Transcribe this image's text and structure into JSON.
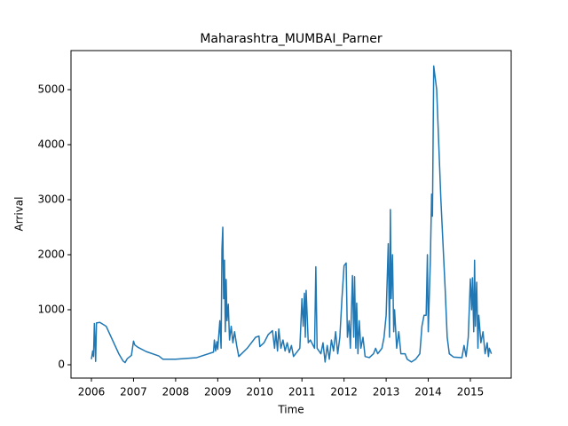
{
  "chart_data": {
    "type": "line",
    "title": "Maharashtra_MUMBAI_Parner",
    "xlabel": "Time",
    "ylabel": "Arrival",
    "color": "#1f77b4",
    "x": [
      2006.0,
      2006.03,
      2006.05,
      2006.07,
      2006.09,
      2006.1,
      2006.12,
      2006.2,
      2006.35,
      2006.5,
      2006.65,
      2006.75,
      2006.8,
      2006.85,
      2006.95,
      2007.0,
      2007.03,
      2007.1,
      2007.3,
      2007.6,
      2007.7,
      2008.0,
      2008.5,
      2008.9,
      2008.92,
      2008.95,
      2008.98,
      2009.0,
      2009.05,
      2009.08,
      2009.1,
      2009.12,
      2009.14,
      2009.16,
      2009.18,
      2009.2,
      2009.22,
      2009.25,
      2009.28,
      2009.32,
      2009.36,
      2009.4,
      2009.45,
      2009.5,
      2009.7,
      2009.9,
      2009.98,
      2010.0,
      2010.1,
      2010.2,
      2010.3,
      2010.35,
      2010.38,
      2010.42,
      2010.45,
      2010.5,
      2010.55,
      2010.6,
      2010.65,
      2010.7,
      2010.75,
      2010.8,
      2010.85,
      2010.95,
      2011.0,
      2011.03,
      2011.06,
      2011.08,
      2011.1,
      2011.15,
      2011.2,
      2011.3,
      2011.33,
      2011.36,
      2011.45,
      2011.5,
      2011.55,
      2011.6,
      2011.65,
      2011.7,
      2011.75,
      2011.8,
      2011.85,
      2011.9,
      2011.95,
      2012.0,
      2012.05,
      2012.08,
      2012.12,
      2012.15,
      2012.2,
      2012.23,
      2012.25,
      2012.28,
      2012.3,
      2012.33,
      2012.36,
      2012.4,
      2012.45,
      2012.5,
      2012.6,
      2012.7,
      2012.75,
      2012.8,
      2012.85,
      2012.9,
      2012.95,
      2013.0,
      2013.05,
      2013.08,
      2013.1,
      2013.12,
      2013.15,
      2013.18,
      2013.2,
      2013.25,
      2013.3,
      2013.35,
      2013.45,
      2013.5,
      2013.6,
      2013.7,
      2013.8,
      2013.85,
      2013.9,
      2013.95,
      2013.98,
      2014.0,
      2014.05,
      2014.08,
      2014.1,
      2014.13,
      2014.2,
      2014.3,
      2014.4,
      2014.45,
      2014.5,
      2014.6,
      2014.8,
      2014.85,
      2014.9,
      2014.95,
      2015.0,
      2015.03,
      2015.05,
      2015.08,
      2015.1,
      2015.12,
      2015.15,
      2015.18,
      2015.2,
      2015.25,
      2015.3,
      2015.35,
      2015.4,
      2015.43,
      2015.45,
      2015.5
    ],
    "values": [
      100,
      250,
      150,
      750,
      300,
      60,
      760,
      770,
      700,
      450,
      200,
      70,
      40,
      110,
      170,
      430,
      360,
      320,
      240,
      160,
      100,
      100,
      130,
      230,
      450,
      250,
      420,
      280,
      800,
      300,
      2100,
      2500,
      1200,
      1900,
      600,
      1550,
      800,
      1100,
      450,
      700,
      400,
      600,
      350,
      150,
      300,
      500,
      520,
      330,
      400,
      550,
      620,
      300,
      600,
      250,
      650,
      300,
      450,
      250,
      400,
      220,
      350,
      150,
      200,
      300,
      1200,
      700,
      1300,
      500,
      1350,
      400,
      450,
      300,
      1780,
      300,
      200,
      400,
      50,
      350,
      100,
      450,
      250,
      600,
      200,
      500,
      1200,
      1800,
      1850,
      500,
      800,
      300,
      1620,
      500,
      1600,
      300,
      1120,
      200,
      800,
      300,
      500,
      150,
      130,
      200,
      300,
      200,
      250,
      300,
      500,
      900,
      2200,
      500,
      2820,
      1200,
      2000,
      600,
      1000,
      300,
      600,
      200,
      200,
      100,
      50,
      100,
      200,
      700,
      900,
      900,
      2000,
      600,
      1900,
      3100,
      2700,
      5430,
      5000,
      3000,
      1400,
      500,
      200,
      140,
      130,
      350,
      150,
      500,
      1560,
      1000,
      1580,
      600,
      1900,
      700,
      1500,
      300,
      900,
      400,
      600,
      200,
      400,
      150,
      300,
      200
    ],
    "xlim": [
      2005.515,
      2015.97
    ],
    "ylim": [
      -242,
      5710
    ],
    "xticks": [
      2006,
      2007,
      2008,
      2009,
      2010,
      2011,
      2012,
      2013,
      2014,
      2015
    ],
    "yticks": [
      0,
      1000,
      2000,
      3000,
      4000,
      5000
    ]
  }
}
